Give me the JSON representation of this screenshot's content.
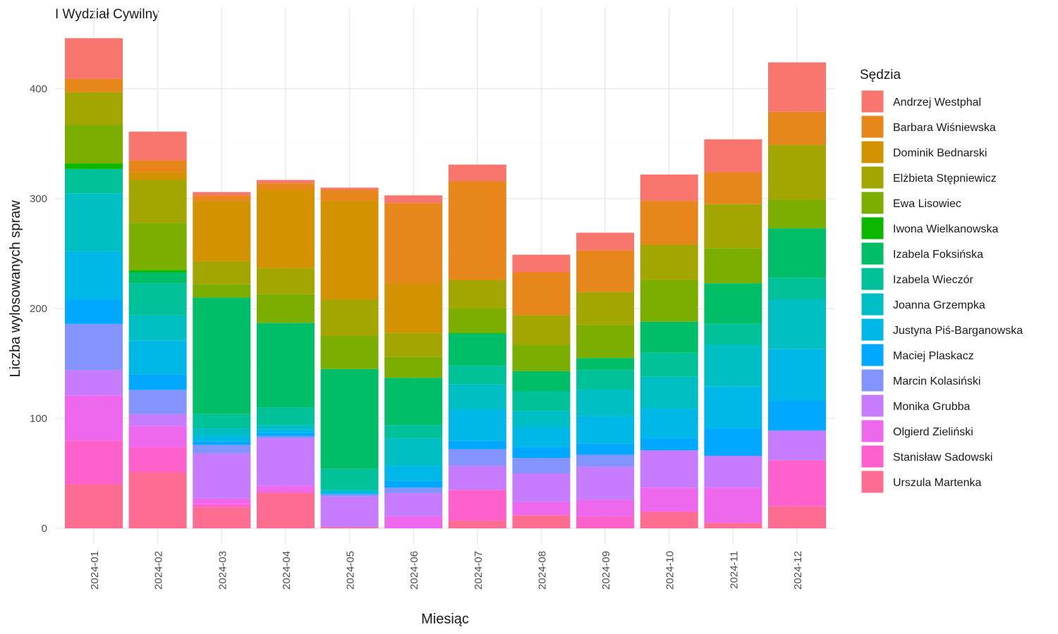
{
  "chart_data": {
    "type": "bar",
    "stacked": true,
    "title": "I Wydział Cywilny",
    "xlabel": "Miesiąc",
    "ylabel": "Liczba wylosowanych spraw",
    "ylim": [
      0,
      460
    ],
    "yticks": [
      0,
      100,
      200,
      300,
      400
    ],
    "grid": true,
    "legend": {
      "title": "Sędzia",
      "position": "right"
    },
    "categories": [
      "2024-01",
      "2024-02",
      "2024-03",
      "2024-04",
      "2024-05",
      "2024-06",
      "2024-07",
      "2024-08",
      "2024-09",
      "2024-10",
      "2024-11",
      "2024-12"
    ],
    "series": [
      {
        "name": "Andrzej Westphal",
        "color": "#F8766D",
        "values": [
          37,
          26,
          3,
          3,
          2,
          7,
          15,
          16,
          16,
          24,
          30,
          45
        ]
      },
      {
        "name": "Barbara Wiśniewska",
        "color": "#E7861B",
        "values": [
          12,
          11,
          5,
          6,
          10,
          73,
          90,
          39,
          38,
          40,
          29,
          30
        ]
      },
      {
        "name": "Dominik Bednarski",
        "color": "#D39200",
        "values": [
          0,
          7,
          55,
          71,
          90,
          45,
          0,
          0,
          0,
          0,
          0,
          0
        ]
      },
      {
        "name": "Elżbieta Stępniewicz",
        "color": "#A3A500",
        "values": [
          30,
          39,
          21,
          24,
          33,
          22,
          26,
          27,
          30,
          32,
          40,
          50
        ]
      },
      {
        "name": "Ewa Lisowiec",
        "color": "#7CAE00",
        "values": [
          35,
          43,
          12,
          26,
          30,
          19,
          22,
          24,
          30,
          38,
          32,
          26
        ]
      },
      {
        "name": "Iwona Wielkanowska",
        "color": "#0CB702",
        "values": [
          5,
          2,
          0,
          0,
          0,
          0,
          1,
          0,
          0,
          0,
          0,
          0
        ]
      },
      {
        "name": "Izabela Foksińska",
        "color": "#00BE67",
        "values": [
          0,
          10,
          106,
          77,
          91,
          43,
          29,
          18,
          11,
          28,
          37,
          45
        ]
      },
      {
        "name": "Izabela Wieczór",
        "color": "#00C19A",
        "values": [
          22,
          29,
          13,
          16,
          19,
          12,
          17,
          18,
          18,
          22,
          19,
          20
        ]
      },
      {
        "name": "Joanna Grzempka",
        "color": "#00BFC4",
        "values": [
          53,
          23,
          7,
          4,
          2,
          25,
          23,
          15,
          24,
          29,
          38,
          45
        ]
      },
      {
        "name": "Justyna Piś-Barganowska",
        "color": "#00B8E7",
        "values": [
          44,
          31,
          5,
          3,
          2,
          14,
          28,
          18,
          25,
          27,
          38,
          47
        ]
      },
      {
        "name": "Maciej Plaskacz",
        "color": "#00A9FF",
        "values": [
          22,
          14,
          3,
          3,
          0,
          6,
          8,
          10,
          10,
          11,
          25,
          27
        ]
      },
      {
        "name": "Marcin Kolasiński",
        "color": "#8494FF",
        "values": [
          42,
          22,
          8,
          2,
          2,
          5,
          15,
          14,
          11,
          0,
          0,
          0
        ]
      },
      {
        "name": "Monika Grubba",
        "color": "#C77CFF",
        "values": [
          23,
          11,
          41,
          43,
          28,
          21,
          22,
          26,
          30,
          34,
          29,
          27
        ]
      },
      {
        "name": "Olgierd Zieliński",
        "color": "#ED68ED",
        "values": [
          41,
          19,
          5,
          6,
          0,
          11,
          0,
          12,
          15,
          22,
          32,
          0
        ]
      },
      {
        "name": "Stanisław Sadowski",
        "color": "#FF61CC",
        "values": [
          40,
          23,
          3,
          1,
          0,
          0,
          28,
          0,
          11,
          0,
          0,
          42
        ]
      },
      {
        "name": "Urszula Martenka",
        "color": "#FF6C91",
        "values": [
          40,
          51,
          19,
          32,
          1,
          0,
          7,
          12,
          0,
          15,
          5,
          20
        ]
      }
    ]
  }
}
